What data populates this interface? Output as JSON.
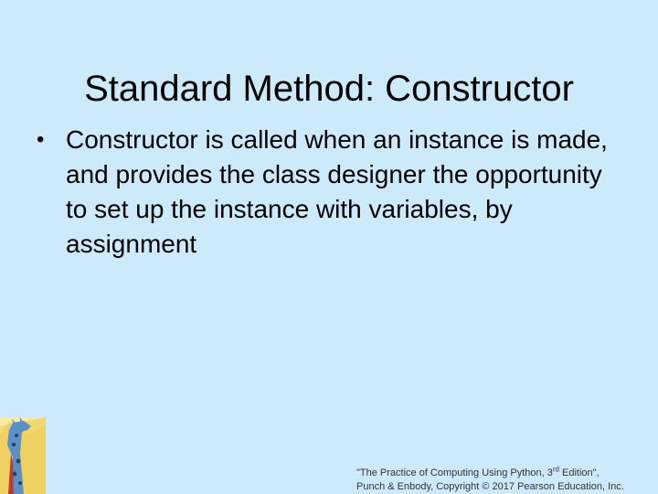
{
  "slide": {
    "title": "Standard Method: Constructor",
    "bullets": [
      "Constructor is called when an instance is made, and provides the class designer the opportunity to set up the instance with variables, by assignment"
    ],
    "bullet_marker": "•"
  },
  "footer": {
    "line1_prefix": "\"The Practice of Computing Using Python, 3",
    "line1_sup": "rd",
    "line1_suffix": " Edition\",",
    "line2": "Punch & Enbody, Copyright © 2017 Pearson Education, Inc."
  },
  "colors": {
    "background": "#cdeafb",
    "text": "#000000"
  },
  "icons": {
    "logo": "giraffe-logo"
  }
}
